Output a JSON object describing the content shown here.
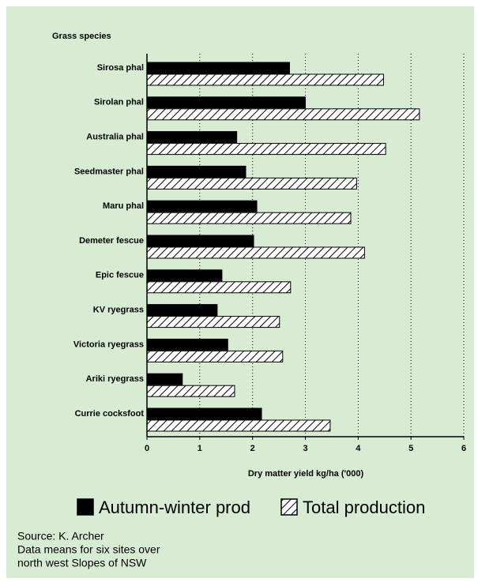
{
  "chart_data": {
    "type": "hbar",
    "y_label": "Grass species",
    "x_label": "Dry matter yield kg/ha ('000)",
    "categories": [
      "Sirosa phal",
      "Sirolan phal",
      "Australia phal",
      "Seedmaster phal",
      "Maru phal",
      "Demeter fescue",
      "Epic fescue",
      "KV ryegrass",
      "Victoria ryegrass",
      "Ariki ryegrass",
      "Currie cocksfoot"
    ],
    "series": [
      {
        "name": "Autumn-winter prod",
        "color": "#000000",
        "hatch": false,
        "values": [
          2.7,
          3.0,
          1.7,
          1.87,
          2.08,
          2.02,
          1.42,
          1.33,
          1.53,
          0.67,
          2.17
        ]
      },
      {
        "name": "Total production",
        "color": "#000000",
        "hatch": true,
        "values": [
          4.48,
          5.16,
          4.52,
          3.97,
          3.86,
          4.12,
          2.72,
          2.51,
          2.57,
          1.66,
          3.47
        ]
      }
    ],
    "xlim": [
      0,
      6
    ],
    "xticks": [
      0,
      1,
      2,
      3,
      4,
      5,
      6
    ],
    "grid": true,
    "source": [
      "Source: K. Archer",
      "Data means for six sites over",
      "north west Slopes of NSW"
    ]
  }
}
